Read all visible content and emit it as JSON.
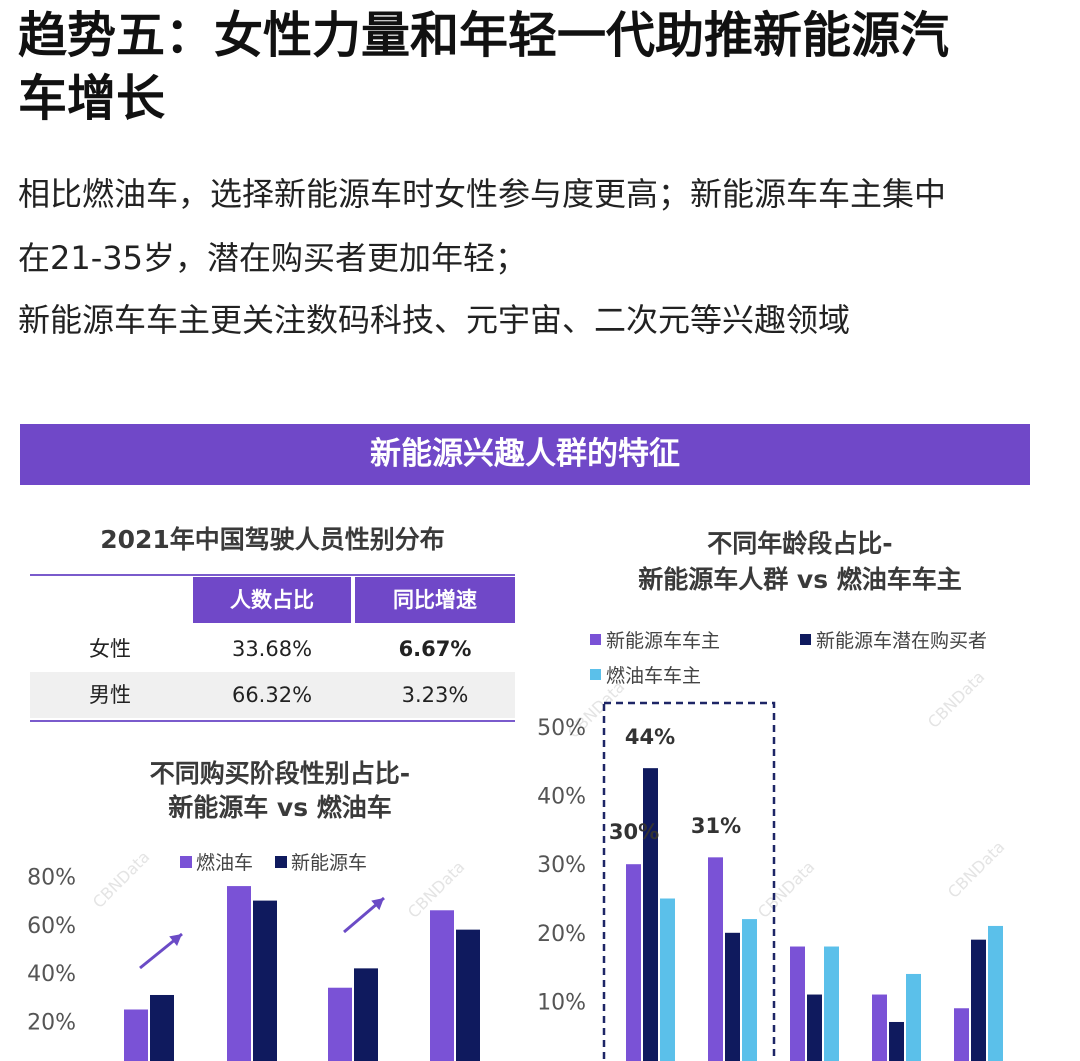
{
  "page": {
    "title_line1": "趋势五：女性力量和年轻一代助推新能源汽",
    "title_line2": "车增长",
    "body_line1": "相比燃油车，选择新能源车时女性参与度更高；新能源车车主集中",
    "body_line2": "在21-35岁，潜在购买者更加年轻；",
    "body_line3": "新能源车车主更关注数码科技、元宇宙、二次元等兴趣领域",
    "banner": "新能源兴趣人群的特征",
    "watermark": "CBNData"
  },
  "gender_table": {
    "title": "2021年中国驾驶人员性别分布",
    "headers": [
      "",
      "人数占比",
      "同比增速"
    ],
    "rows": [
      {
        "label": "女性",
        "share": "33.68%",
        "growth": "6.67%"
      },
      {
        "label": "男性",
        "share": "66.32%",
        "growth": "3.23%"
      }
    ]
  },
  "chart_data": [
    {
      "type": "bar",
      "title": "不同购买阶段性别占比-\n新能源车 vs 燃油车",
      "title_line1": "不同购买阶段性别占比-",
      "title_line2": "新能源车 vs 燃油车",
      "legend": [
        "燃油车",
        "新能源车"
      ],
      "legend_position": "top",
      "y_ticks": [
        "20%",
        "40%",
        "60%",
        "80%"
      ],
      "ylim": [
        0,
        80
      ],
      "series": [
        {
          "name": "燃油车",
          "color": "#7a52d6",
          "values": [
            25,
            76,
            34,
            66
          ]
        },
        {
          "name": "新能源车",
          "color": "#0f1a5e",
          "values": [
            31,
            70,
            42,
            58
          ]
        }
      ],
      "arrows": [
        0,
        2
      ],
      "arrow_color": "#6b4bc6",
      "grid": false
    },
    {
      "type": "bar",
      "title": "不同年龄段占比-\n新能源车人群 vs 燃油车车主",
      "title_line1": "不同年龄段占比-",
      "title_line2": "新能源车人群 vs 燃油车车主",
      "legend": [
        "新能源车车主",
        "新能源车潜在购买者",
        "燃油车车主"
      ],
      "legend_position": "top",
      "y_ticks": [
        "10%",
        "20%",
        "30%",
        "40%",
        "50%"
      ],
      "ylim": [
        0,
        50
      ],
      "series": [
        {
          "name": "新能源车车主",
          "color": "#7a52d6",
          "values": [
            30,
            31,
            18,
            11,
            9
          ]
        },
        {
          "name": "新能源车潜在购买者",
          "color": "#0f1a5e",
          "values": [
            44,
            20,
            11,
            7,
            19
          ]
        },
        {
          "name": "燃油车车主",
          "color": "#5bc0ea",
          "values": [
            25,
            22,
            18,
            14,
            21
          ]
        }
      ],
      "data_labels": [
        "44%",
        "30%",
        "31%"
      ],
      "highlight_groups": [
        0,
        1
      ],
      "grid": false
    }
  ]
}
